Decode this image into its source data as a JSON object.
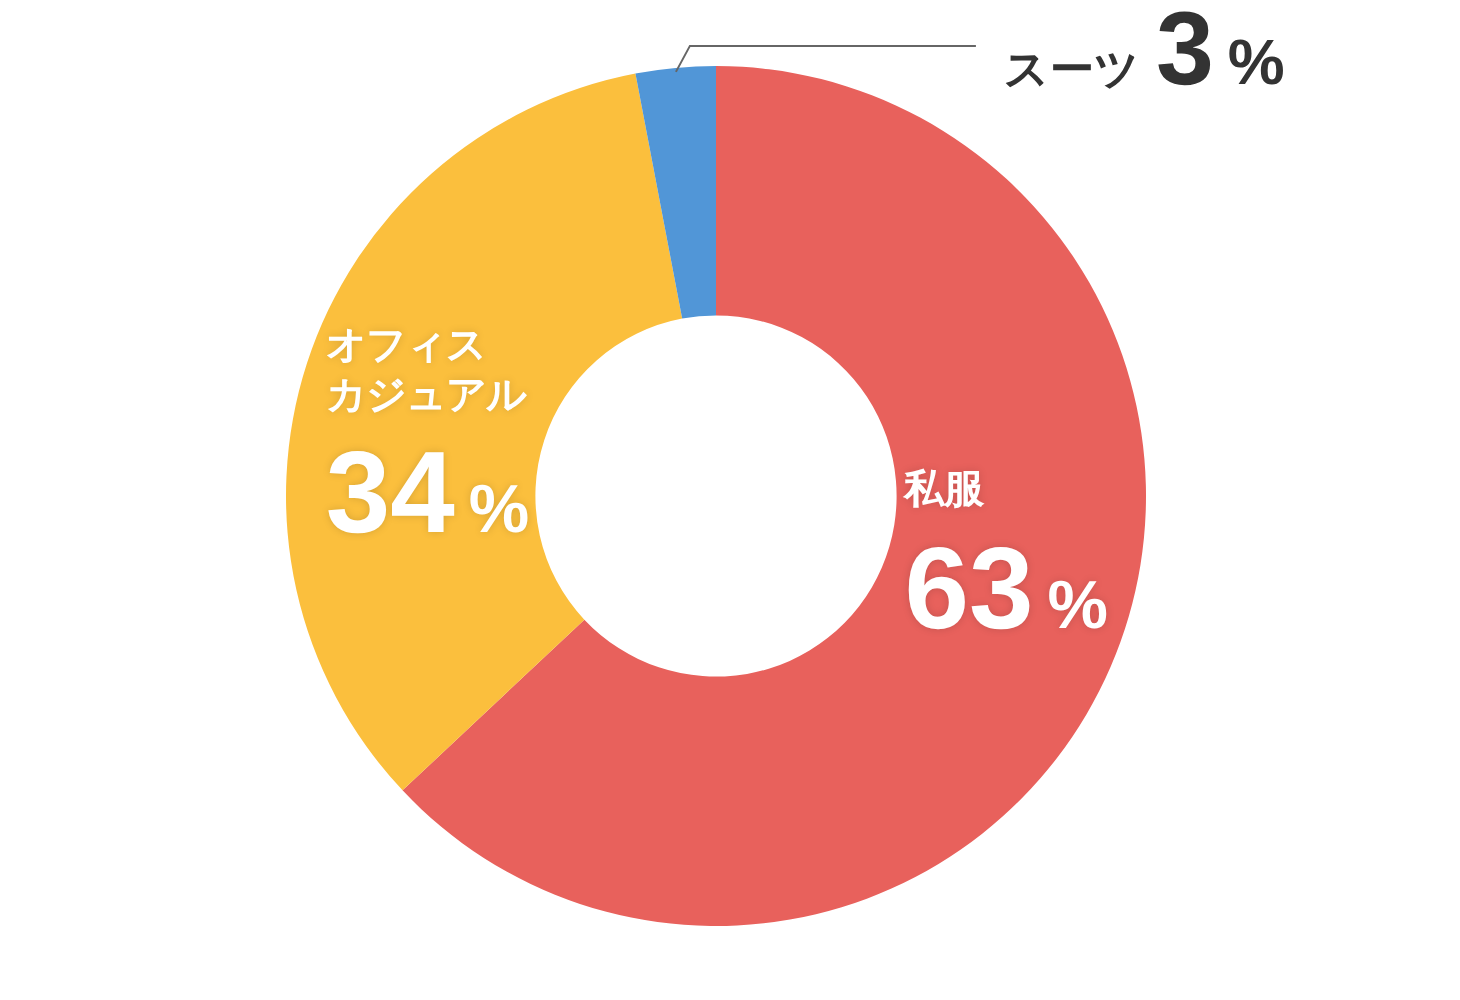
{
  "chart_data": {
    "type": "donut",
    "categories": [
      "私服",
      "オフィスカジュアル",
      "スーツ"
    ],
    "values": [
      63,
      34,
      3
    ],
    "colors": [
      "#e8615c",
      "#fbbf3d",
      "#5196d7"
    ],
    "value_labels": [
      "63%",
      "34%",
      "3%"
    ]
  }
}
